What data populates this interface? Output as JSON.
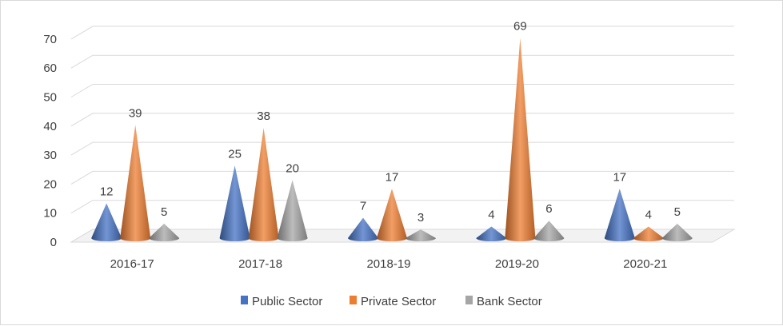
{
  "chart_data": {
    "type": "bar",
    "style": "3d-cone",
    "categories": [
      "2016-17",
      "2017-18",
      "2018-19",
      "2019-20",
      "2020-21"
    ],
    "series": [
      {
        "name": "Public Sector",
        "color": "#4472c4",
        "values": [
          12,
          25,
          7,
          4,
          17
        ]
      },
      {
        "name": "Private Sector",
        "color": "#ed7d31",
        "values": [
          39,
          38,
          17,
          69,
          4
        ]
      },
      {
        "name": "Bank Sector",
        "color": "#a5a5a5",
        "values": [
          5,
          20,
          3,
          6,
          5
        ]
      }
    ],
    "title": "",
    "xlabel": "",
    "ylabel": "",
    "ylim": [
      0,
      70
    ],
    "yticks": [
      "0",
      "10",
      "20",
      "30",
      "40",
      "50",
      "60",
      "70"
    ],
    "grid": true,
    "legend_position": "bottom",
    "data_labels": true
  }
}
